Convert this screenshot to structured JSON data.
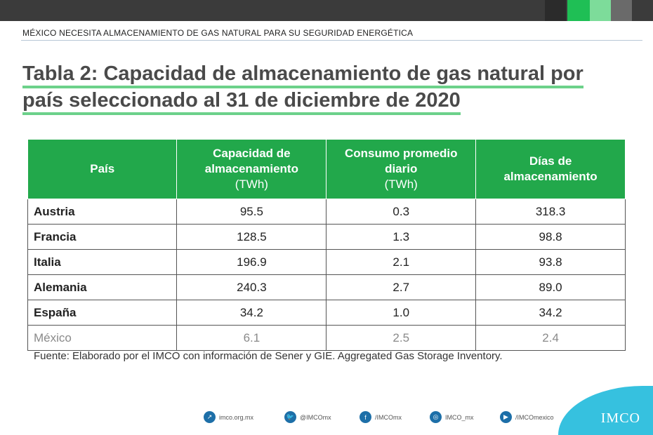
{
  "header": {
    "title": "MÉXICO NECESITA ALMACENAMIENTO DE GAS NATURAL  PARA SU SEGURIDAD ENERGÉTICA"
  },
  "main": {
    "title_line1": "Tabla 2: Capacidad de almacenamiento de gas natural por",
    "title_line2": "país seleccionado al 31 de diciembre de 2020",
    "table": {
      "columns": [
        {
          "label": "País",
          "unit": ""
        },
        {
          "label": "Capacidad de almacenamiento",
          "unit": "(TWh)"
        },
        {
          "label": "Consumo promedio diario",
          "unit": "(TWh)"
        },
        {
          "label": "Días de almacenamiento",
          "unit": ""
        }
      ],
      "rows": [
        {
          "country": "Austria",
          "capacity": "95.5",
          "consumption": "0.3",
          "days": "318.3"
        },
        {
          "country": "Francia",
          "capacity": "128.5",
          "consumption": "1.3",
          "days": "98.8"
        },
        {
          "country": "Italia",
          "capacity": "196.9",
          "consumption": "2.1",
          "days": "93.8"
        },
        {
          "country": "Alemania",
          "capacity": "240.3",
          "consumption": "2.7",
          "days": "89.0"
        },
        {
          "country": "España",
          "capacity": "34.2",
          "consumption": "1.0",
          "days": "34.2"
        },
        {
          "country": "México",
          "capacity": "6.1",
          "consumption": "2.5",
          "days": "2.4"
        }
      ]
    },
    "source": "Fuente: Elaborado por el IMCO con información de Sener y GIE. Aggregated Gas Storage Inventory."
  },
  "footer": {
    "items": [
      {
        "icon": "link-icon",
        "label": "imco.org.mx"
      },
      {
        "icon": "twitter-icon",
        "label": "@IMCOmx"
      },
      {
        "icon": "facebook-icon",
        "label": "/IMCOmx"
      },
      {
        "icon": "instagram-icon",
        "label": "IMCO_mx"
      },
      {
        "icon": "youtube-icon",
        "label": "/IMCOmexico"
      }
    ],
    "logo": "IMCO"
  },
  "colors": {
    "header_green": "#22a84b",
    "accent_underline": "#6cd18a",
    "corner_blue": "#36c1df",
    "topbar_dark": "#3b3b3b"
  }
}
